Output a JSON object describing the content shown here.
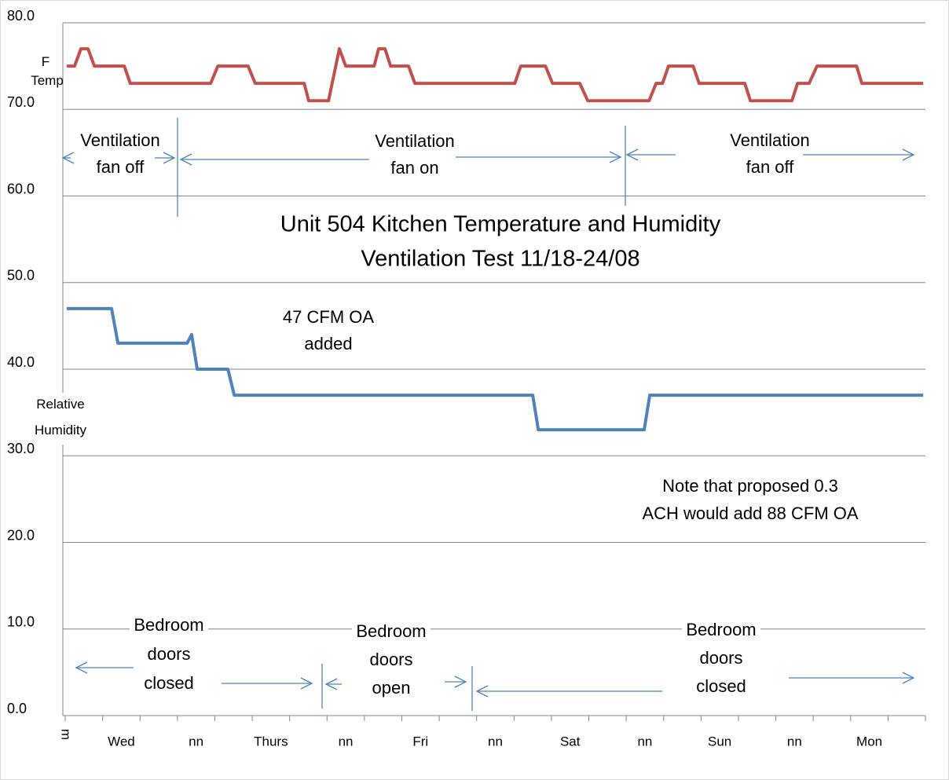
{
  "chart_data": {
    "type": "line",
    "title": "Unit 504 Kitchen Temperature  and Humidity",
    "subtitle": "Ventilation Test 11/18-24/08",
    "categories": [
      "m",
      "Wed",
      null,
      "nn",
      null,
      "Thurs",
      null,
      "nn",
      null,
      "Fri",
      null,
      "nn",
      null,
      "Sat",
      null,
      "nn",
      null,
      "Sun",
      null,
      "nn",
      null,
      "Mon",
      null
    ],
    "xlim": [
      0,
      23
    ],
    "ylim": [
      0,
      80
    ],
    "yticks": [
      {
        "value": 0,
        "label": "0.0"
      },
      {
        "value": 10,
        "label": "10.0"
      },
      {
        "value": 20,
        "label": "20.0"
      },
      {
        "value": 30,
        "label": "30.0"
      },
      {
        "value": 40,
        "label": "40.0"
      },
      {
        "value": 50,
        "label": "50.0"
      },
      {
        "value": 60,
        "label": "60.0"
      },
      {
        "value": 70,
        "label": "70.0"
      },
      {
        "value": 80,
        "label": "80.0"
      }
    ],
    "grid": true,
    "series": [
      {
        "name": "F Temp",
        "color": "#c0504d",
        "x": [
          0.04,
          0.25,
          0.42,
          0.61,
          0.78,
          1.58,
          1.74,
          3.89,
          4.08,
          4.89,
          5.08,
          6.39,
          6.51,
          7.04,
          7.33,
          7.5,
          8.26,
          8.38,
          8.55,
          8.7,
          9.18,
          9.35,
          12.02,
          12.18,
          12.84,
          13.03,
          13.76,
          13.97,
          15.61,
          15.8,
          15.97,
          16.13,
          16.79,
          16.95,
          18.17,
          18.32,
          19.43,
          19.58,
          19.89,
          20.1,
          21.16,
          21.3,
          22.94
        ],
        "values": [
          75,
          75,
          77,
          77,
          75,
          75,
          73,
          73,
          75,
          75,
          73,
          73,
          71,
          71,
          77,
          75,
          75,
          77,
          77,
          75,
          75,
          73,
          73,
          75,
          75,
          73,
          73,
          71,
          71,
          73,
          73,
          75,
          75,
          73,
          73,
          71,
          71,
          73,
          73,
          75,
          75,
          73,
          73
        ]
      },
      {
        "name": "Relative Humidity",
        "color": "#4f81bd",
        "x": [
          0.04,
          1.24,
          1.41,
          3.26,
          3.38,
          3.53,
          4.35,
          4.52,
          12.5,
          12.65,
          15.48,
          15.63,
          22.94
        ],
        "values": [
          47,
          47,
          43,
          43,
          44,
          40,
          40,
          37,
          37,
          33,
          33,
          37,
          37
        ]
      }
    ],
    "annotations": [
      {
        "lines": [
          "Ventilation",
          "fan off"
        ]
      },
      {
        "lines": [
          "Ventilation",
          "fan on"
        ]
      },
      {
        "lines": [
          "Ventilation",
          "fan off"
        ]
      },
      {
        "lines": [
          "47 CFM OA",
          "added"
        ]
      },
      {
        "lines": [
          "Note that proposed 0.3",
          "ACH would add 88 CFM OA"
        ]
      },
      {
        "lines": [
          "Bedroom",
          "doors",
          "closed"
        ]
      },
      {
        "lines": [
          "Bedroom",
          "doors",
          "open"
        ]
      },
      {
        "lines": [
          "Bedroom",
          "doors",
          "closed"
        ]
      }
    ]
  }
}
